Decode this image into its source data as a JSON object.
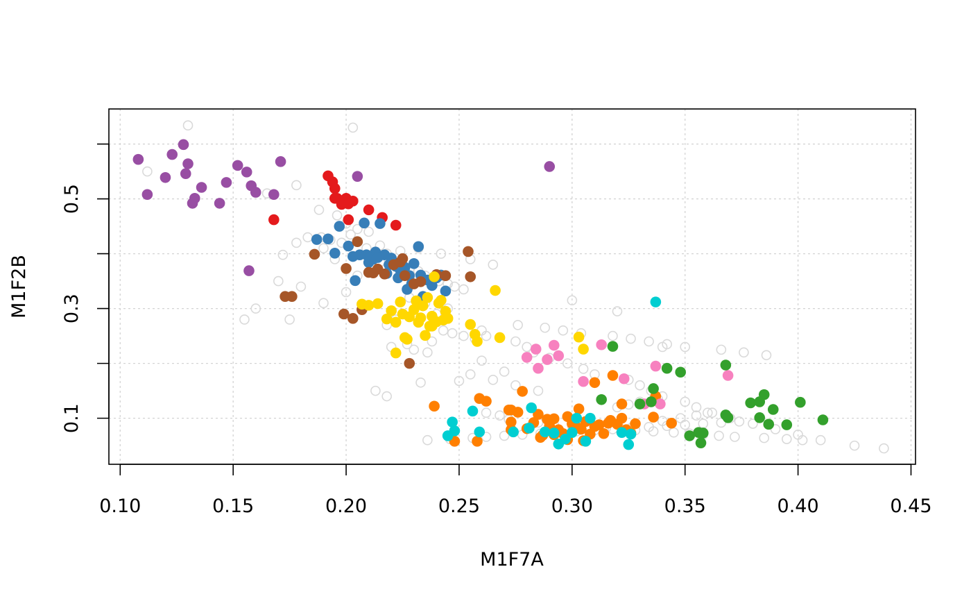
{
  "chart_data": {
    "type": "scatter",
    "title": "",
    "xlabel": "M1F7A",
    "ylabel": "M1F2B",
    "xlim": [
      0.095,
      0.452
    ],
    "ylim": [
      0.016,
      0.664
    ],
    "x_ticks": [
      0.1,
      0.15,
      0.2,
      0.25,
      0.3,
      0.35,
      0.4,
      0.45
    ],
    "x_tick_labels": [
      "0.10",
      "0.15",
      "0.20",
      "0.25",
      "0.30",
      "0.35",
      "0.40",
      "0.45"
    ],
    "y_ticks": [
      0.1,
      0.2,
      0.3,
      0.4,
      0.5,
      0.6
    ],
    "y_tick_labels": [
      "0.1",
      "",
      "0.3",
      "",
      "0.5",
      ""
    ],
    "grid": true,
    "legend": "none",
    "series": [
      {
        "color": "#d9d9d9",
        "marker": "open-circle",
        "x": [
          0.13,
          0.203,
          0.112,
          0.178,
          0.165,
          0.188,
          0.196,
          0.2,
          0.205,
          0.21,
          0.183,
          0.178,
          0.19,
          0.172,
          0.195,
          0.215,
          0.225,
          0.228,
          0.232,
          0.235,
          0.238,
          0.241,
          0.245,
          0.248,
          0.252,
          0.228,
          0.235,
          0.245,
          0.24,
          0.222,
          0.218,
          0.26,
          0.262,
          0.275,
          0.28,
          0.283,
          0.29,
          0.298,
          0.305,
          0.31,
          0.325,
          0.33,
          0.335,
          0.34,
          0.35,
          0.355,
          0.36,
          0.37,
          0.38,
          0.39,
          0.4,
          0.41,
          0.425,
          0.438,
          0.3,
          0.32,
          0.34,
          0.26,
          0.27,
          0.25,
          0.233,
          0.213,
          0.218,
          0.205,
          0.2,
          0.19,
          0.18,
          0.17,
          0.175,
          0.16,
          0.155,
          0.262,
          0.268,
          0.272,
          0.285,
          0.292,
          0.3,
          0.308,
          0.315,
          0.322,
          0.328,
          0.336,
          0.345,
          0.352,
          0.358,
          0.365,
          0.372,
          0.385,
          0.395,
          0.402,
          0.34,
          0.348,
          0.355,
          0.362,
          0.32,
          0.325,
          0.33,
          0.338,
          0.285,
          0.275,
          0.265,
          0.255,
          0.243,
          0.247,
          0.252,
          0.257,
          0.238,
          0.227,
          0.22,
          0.23,
          0.236,
          0.212,
          0.218,
          0.224,
          0.209,
          0.215,
          0.198,
          0.193,
          0.189,
          0.202,
          0.232,
          0.242,
          0.255,
          0.265,
          0.276,
          0.288,
          0.296,
          0.304,
          0.318,
          0.326,
          0.334,
          0.342,
          0.35,
          0.366,
          0.376,
          0.386,
          0.236,
          0.246,
          0.256,
          0.262,
          0.27,
          0.278,
          0.286,
          0.294,
          0.302,
          0.31,
          0.318,
          0.326,
          0.334,
          0.342,
          0.35,
          0.358,
          0.366,
          0.374
        ],
        "y": [
          0.634,
          0.63,
          0.55,
          0.525,
          0.51,
          0.48,
          0.47,
          0.455,
          0.445,
          0.44,
          0.43,
          0.42,
          0.41,
          0.398,
          0.39,
          0.385,
          0.38,
          0.372,
          0.368,
          0.36,
          0.355,
          0.35,
          0.345,
          0.34,
          0.335,
          0.32,
          0.31,
          0.3,
          0.29,
          0.28,
          0.27,
          0.26,
          0.25,
          0.24,
          0.23,
          0.22,
          0.21,
          0.2,
          0.19,
          0.18,
          0.17,
          0.16,
          0.15,
          0.14,
          0.13,
          0.12,
          0.11,
          0.1,
          0.09,
          0.08,
          0.07,
          0.06,
          0.05,
          0.045,
          0.315,
          0.295,
          0.23,
          0.205,
          0.185,
          0.168,
          0.165,
          0.15,
          0.14,
          0.36,
          0.33,
          0.31,
          0.34,
          0.35,
          0.28,
          0.3,
          0.28,
          0.11,
          0.105,
          0.098,
          0.092,
          0.088,
          0.086,
          0.084,
          0.082,
          0.08,
          0.078,
          0.076,
          0.074,
          0.072,
          0.07,
          0.068,
          0.066,
          0.064,
          0.062,
          0.06,
          0.095,
          0.1,
          0.105,
          0.11,
          0.12,
          0.125,
          0.13,
          0.135,
          0.15,
          0.16,
          0.17,
          0.18,
          0.26,
          0.255,
          0.25,
          0.245,
          0.24,
          0.235,
          0.23,
          0.225,
          0.22,
          0.395,
          0.4,
          0.405,
          0.41,
          0.415,
          0.42,
          0.425,
          0.43,
          0.435,
          0.41,
          0.4,
          0.39,
          0.38,
          0.27,
          0.265,
          0.26,
          0.255,
          0.25,
          0.245,
          0.24,
          0.235,
          0.23,
          0.225,
          0.22,
          0.215,
          0.06,
          0.062,
          0.064,
          0.066,
          0.068,
          0.07,
          0.072,
          0.074,
          0.076,
          0.078,
          0.08,
          0.082,
          0.084,
          0.086,
          0.088,
          0.09,
          0.092,
          0.094
        ]
      },
      {
        "color": "#984ea3",
        "marker": "filled-circle",
        "x": [
          0.108,
          0.112,
          0.12,
          0.123,
          0.128,
          0.129,
          0.13,
          0.132,
          0.133,
          0.136,
          0.144,
          0.147,
          0.152,
          0.156,
          0.158,
          0.16,
          0.157,
          0.168,
          0.171,
          0.205,
          0.29
        ],
        "y": [
          0.572,
          0.508,
          0.539,
          0.581,
          0.599,
          0.546,
          0.564,
          0.492,
          0.501,
          0.521,
          0.492,
          0.53,
          0.561,
          0.549,
          0.524,
          0.512,
          0.369,
          0.508,
          0.568,
          0.541,
          0.559
        ]
      },
      {
        "color": "#e41a1c",
        "marker": "filled-circle",
        "x": [
          0.168,
          0.192,
          0.194,
          0.195,
          0.196,
          0.195,
          0.198,
          0.2,
          0.201,
          0.201,
          0.203,
          0.21,
          0.216,
          0.222
        ],
        "y": [
          0.462,
          0.542,
          0.531,
          0.519,
          0.501,
          0.501,
          0.49,
          0.501,
          0.491,
          0.462,
          0.496,
          0.48,
          0.466,
          0.452
        ]
      },
      {
        "color": "#377eb8",
        "marker": "filled-circle",
        "x": [
          0.187,
          0.192,
          0.195,
          0.197,
          0.201,
          0.203,
          0.206,
          0.208,
          0.21,
          0.212,
          0.213,
          0.215,
          0.217,
          0.219,
          0.22,
          0.222,
          0.224,
          0.226,
          0.228,
          0.23,
          0.232,
          0.233,
          0.236,
          0.238,
          0.24,
          0.242,
          0.244,
          0.209,
          0.214,
          0.218,
          0.223,
          0.227,
          0.229,
          0.234,
          0.204
        ],
        "y": [
          0.426,
          0.427,
          0.401,
          0.45,
          0.414,
          0.395,
          0.398,
          0.456,
          0.384,
          0.39,
          0.403,
          0.455,
          0.398,
          0.38,
          0.392,
          0.377,
          0.37,
          0.375,
          0.36,
          0.382,
          0.413,
          0.361,
          0.352,
          0.342,
          0.356,
          0.361,
          0.332,
          0.398,
          0.393,
          0.364,
          0.356,
          0.335,
          0.345,
          0.322,
          0.351
        ]
      },
      {
        "color": "#a65628",
        "marker": "filled-circle",
        "x": [
          0.173,
          0.176,
          0.186,
          0.199,
          0.2,
          0.203,
          0.205,
          0.207,
          0.21,
          0.212,
          0.214,
          0.217,
          0.221,
          0.224,
          0.225,
          0.226,
          0.228,
          0.23,
          0.233,
          0.24,
          0.244,
          0.254,
          0.255
        ],
        "y": [
          0.322,
          0.322,
          0.399,
          0.29,
          0.373,
          0.282,
          0.422,
          0.298,
          0.366,
          0.365,
          0.372,
          0.363,
          0.38,
          0.385,
          0.391,
          0.36,
          0.2,
          0.345,
          0.349,
          0.362,
          0.36,
          0.404,
          0.358
        ]
      },
      {
        "color": "#ffd700",
        "marker": "filled-circle",
        "x": [
          0.207,
          0.21,
          0.214,
          0.218,
          0.22,
          0.222,
          0.224,
          0.225,
          0.226,
          0.228,
          0.23,
          0.231,
          0.232,
          0.233,
          0.234,
          0.236,
          0.237,
          0.238,
          0.24,
          0.241,
          0.242,
          0.243,
          0.244,
          0.245,
          0.222,
          0.227,
          0.235,
          0.239,
          0.255,
          0.257,
          0.258,
          0.266,
          0.268,
          0.238,
          0.303,
          0.305
        ],
        "y": [
          0.308,
          0.306,
          0.309,
          0.281,
          0.296,
          0.275,
          0.312,
          0.29,
          0.247,
          0.285,
          0.298,
          0.314,
          0.275,
          0.283,
          0.305,
          0.32,
          0.268,
          0.286,
          0.276,
          0.31,
          0.315,
          0.279,
          0.295,
          0.282,
          0.219,
          0.244,
          0.251,
          0.358,
          0.271,
          0.253,
          0.24,
          0.333,
          0.247,
          0.268,
          0.248,
          0.226
        ]
      },
      {
        "color": "#ff7f00",
        "marker": "filled-circle",
        "x": [
          0.239,
          0.248,
          0.258,
          0.259,
          0.262,
          0.272,
          0.273,
          0.276,
          0.278,
          0.28,
          0.283,
          0.285,
          0.287,
          0.289,
          0.29,
          0.292,
          0.294,
          0.296,
          0.298,
          0.3,
          0.302,
          0.303,
          0.305,
          0.306,
          0.308,
          0.31,
          0.312,
          0.314,
          0.316,
          0.318,
          0.32,
          0.322,
          0.324,
          0.326,
          0.328,
          0.336,
          0.337,
          0.344,
          0.273,
          0.286,
          0.298,
          0.31,
          0.322,
          0.336,
          0.273,
          0.292,
          0.317,
          0.304
        ],
        "y": [
          0.122,
          0.058,
          0.058,
          0.136,
          0.131,
          0.115,
          0.079,
          0.111,
          0.149,
          0.081,
          0.092,
          0.107,
          0.069,
          0.098,
          0.086,
          0.099,
          0.079,
          0.072,
          0.103,
          0.09,
          0.084,
          0.117,
          0.059,
          0.094,
          0.071,
          0.165,
          0.088,
          0.072,
          0.091,
          0.178,
          0.089,
          0.126,
          0.079,
          0.073,
          0.09,
          0.102,
          0.14,
          0.091,
          0.115,
          0.065,
          0.061,
          0.085,
          0.1,
          0.132,
          0.093,
          0.07,
          0.096,
          0.08
        ]
      },
      {
        "color": "#00ced1",
        "marker": "filled-circle",
        "x": [
          0.245,
          0.247,
          0.248,
          0.256,
          0.259,
          0.274,
          0.281,
          0.282,
          0.288,
          0.292,
          0.294,
          0.297,
          0.3,
          0.302,
          0.306,
          0.308,
          0.322,
          0.325,
          0.326,
          0.337
        ],
        "y": [
          0.068,
          0.093,
          0.077,
          0.113,
          0.075,
          0.075,
          0.082,
          0.119,
          0.075,
          0.073,
          0.053,
          0.062,
          0.074,
          0.1,
          0.058,
          0.1,
          0.074,
          0.052,
          0.071,
          0.312
        ]
      },
      {
        "color": "#f781bf",
        "marker": "filled-circle",
        "x": [
          0.28,
          0.284,
          0.285,
          0.289,
          0.292,
          0.294,
          0.305,
          0.313,
          0.323,
          0.332,
          0.337,
          0.339,
          0.369
        ],
        "y": [
          0.211,
          0.226,
          0.191,
          0.207,
          0.233,
          0.214,
          0.167,
          0.234,
          0.172,
          0.126,
          0.195,
          0.126,
          0.178
        ]
      },
      {
        "color": "#33a02c",
        "marker": "filled-circle",
        "x": [
          0.313,
          0.318,
          0.33,
          0.335,
          0.336,
          0.342,
          0.348,
          0.352,
          0.356,
          0.357,
          0.358,
          0.368,
          0.368,
          0.369,
          0.379,
          0.383,
          0.383,
          0.385,
          0.387,
          0.389,
          0.395,
          0.401,
          0.411
        ],
        "y": [
          0.134,
          0.231,
          0.126,
          0.13,
          0.154,
          0.191,
          0.184,
          0.068,
          0.074,
          0.055,
          0.073,
          0.197,
          0.106,
          0.101,
          0.128,
          0.13,
          0.101,
          0.143,
          0.089,
          0.116,
          0.088,
          0.129,
          0.097
        ]
      }
    ]
  }
}
